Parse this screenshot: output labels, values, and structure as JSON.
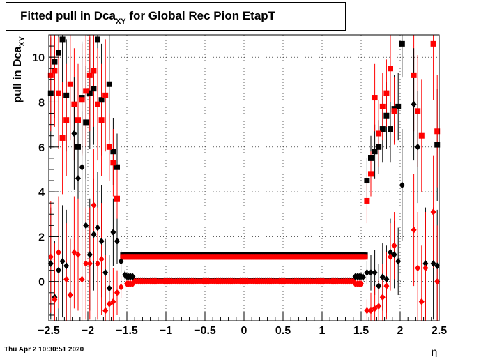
{
  "title": {
    "main": "Fitted pull in Dca",
    "sub": "XY",
    "rest": " for Global Rec Pion EtapT"
  },
  "ylabel": {
    "main": "pull in Dca",
    "sub": "XY"
  },
  "xlabel": "η",
  "footer": "Thu Apr  2 10:30:51 2020",
  "chart_data": {
    "type": "scatter",
    "xlim": [
      -2.5,
      2.5
    ],
    "ylim": [
      -1.75,
      11.0
    ],
    "xticks": [
      -2.5,
      -2,
      -1.5,
      -1,
      -0.5,
      0,
      0.5,
      1,
      1.5,
      2,
      2.5
    ],
    "xtick_labels": [
      "−2.5",
      "−2",
      "−1.5",
      "−1",
      "−0.5",
      "0",
      "0.5",
      "1",
      "1.5",
      "2",
      "2.5"
    ],
    "yticks": [
      0,
      2,
      4,
      6,
      8,
      10
    ],
    "ytick_labels": [
      "0",
      "2",
      "4",
      "6",
      "8",
      "10"
    ],
    "grid": true,
    "colors": {
      "black": "#000000",
      "red": "#ff0000"
    },
    "series": [
      {
        "marker": "square",
        "color": "#000000",
        "points": [
          [
            -2.475,
            8.4,
            2.5
          ],
          [
            -2.425,
            9.8,
            2.5
          ],
          [
            -2.375,
            10.2,
            2.5
          ],
          [
            -2.325,
            10.8,
            2.5
          ],
          [
            -2.275,
            8.3,
            2.5
          ],
          [
            -2.125,
            6.0,
            2.5
          ],
          [
            -2.075,
            8.2,
            2.5
          ],
          [
            -2.025,
            7.1,
            2.5
          ],
          [
            -1.975,
            8.4,
            2.5
          ],
          [
            -1.925,
            8.6,
            2.5
          ],
          [
            -1.875,
            10.8,
            2.5
          ],
          [
            -1.825,
            8.1,
            2.5
          ],
          [
            -1.725,
            8.8,
            2.5
          ],
          [
            -1.675,
            5.8,
            1.5
          ],
          [
            -1.625,
            5.1,
            1.5
          ],
          [
            1.575,
            4.5,
            1.0
          ],
          [
            1.625,
            5.5,
            1.0
          ],
          [
            1.675,
            5.8,
            1.2
          ],
          [
            1.725,
            6.0,
            1.2
          ],
          [
            1.775,
            6.8,
            1.5
          ],
          [
            1.825,
            7.4,
            1.5
          ],
          [
            1.875,
            6.8,
            1.5
          ],
          [
            1.925,
            7.7,
            1.5
          ],
          [
            1.975,
            7.8,
            1.5
          ],
          [
            2.025,
            10.6,
            1.5
          ],
          [
            2.475,
            6.1,
            2.5
          ]
        ]
      },
      {
        "marker": "square",
        "color": "#ff0000",
        "points": [
          [
            -2.475,
            9.2,
            2.5
          ],
          [
            -2.425,
            9.4,
            2.5
          ],
          [
            -2.375,
            8.4,
            2.5
          ],
          [
            -2.325,
            6.4,
            2.5
          ],
          [
            -2.275,
            7.2,
            2.5
          ],
          [
            -2.225,
            8.8,
            2.5
          ],
          [
            -2.175,
            7.9,
            2.5
          ],
          [
            -2.125,
            7.2,
            2.5
          ],
          [
            -2.075,
            8.1,
            2.5
          ],
          [
            -2.025,
            8.5,
            2.5
          ],
          [
            -1.975,
            9.2,
            2.5
          ],
          [
            -1.925,
            9.4,
            2.5
          ],
          [
            -1.875,
            7.9,
            2.5
          ],
          [
            -1.825,
            7.2,
            2.5
          ],
          [
            -1.775,
            8.3,
            2.5
          ],
          [
            -1.725,
            6.0,
            1.5
          ],
          [
            -1.675,
            5.3,
            1.5
          ],
          [
            -1.625,
            3.7,
            1.5
          ],
          [
            1.575,
            3.6,
            1.0
          ],
          [
            1.625,
            4.8,
            1.0
          ],
          [
            1.675,
            8.2,
            1.5
          ],
          [
            1.725,
            6.6,
            1.5
          ],
          [
            1.775,
            7.8,
            1.5
          ],
          [
            1.825,
            8.4,
            1.5
          ],
          [
            1.875,
            9.5,
            1.5
          ],
          [
            1.925,
            7.6,
            1.5
          ],
          [
            2.175,
            9.2,
            2.5
          ],
          [
            2.225,
            7.6,
            2.5
          ],
          [
            2.275,
            6.5,
            2.5
          ],
          [
            2.425,
            10.6,
            2.5
          ],
          [
            2.475,
            6.7,
            2.5
          ]
        ]
      },
      {
        "marker": "square",
        "color": "#000000",
        "band": true,
        "x_start": -1.55,
        "x_end": 1.55,
        "step": 0.025,
        "values": [
          1.17,
          1.17
        ]
      },
      {
        "marker": "square",
        "color": "#ff0000",
        "band": true,
        "x_start": -1.55,
        "x_end": 1.55,
        "step": 0.025,
        "values": [
          1.1,
          1.1
        ]
      },
      {
        "marker": "diamond",
        "color": "#000000",
        "points": [
          [
            -2.475,
            0.8,
            2.5
          ],
          [
            -2.425,
            -0.7,
            2.5
          ],
          [
            -2.375,
            0.5,
            2.5
          ],
          [
            -2.325,
            0.9,
            2.5
          ],
          [
            -2.275,
            0.7,
            2.5
          ],
          [
            -2.225,
            -0.6,
            2.5
          ],
          [
            -2.175,
            6.6,
            2.5
          ],
          [
            -2.125,
            4.6,
            2.5
          ],
          [
            -2.075,
            5.1,
            2.5
          ],
          [
            -2.025,
            2.5,
            2.5
          ],
          [
            -1.975,
            1.2,
            2.5
          ],
          [
            -1.925,
            2.1,
            2.5
          ],
          [
            -1.875,
            2.4,
            2.5
          ],
          [
            -1.825,
            1.8,
            2.5
          ],
          [
            -1.775,
            0.4,
            1.5
          ],
          [
            -1.725,
            -0.3,
            1.5
          ],
          [
            -1.675,
            2.2,
            1.5
          ],
          [
            -1.625,
            1.8,
            1.0
          ],
          [
            -1.575,
            0.9,
            0.5
          ],
          [
            -1.525,
            0.3,
            0.2
          ],
          [
            1.525,
            0.2,
            0.2
          ],
          [
            1.575,
            0.4,
            0.5
          ],
          [
            1.625,
            0.4,
            0.8
          ],
          [
            1.675,
            0.4,
            1.0
          ],
          [
            1.725,
            -0.2,
            1.0
          ],
          [
            1.775,
            0.2,
            1.5
          ],
          [
            1.825,
            0.1,
            1.5
          ],
          [
            1.875,
            1.3,
            1.5
          ],
          [
            1.925,
            1.2,
            1.5
          ],
          [
            1.975,
            0.9,
            1.5
          ],
          [
            2.025,
            4.3,
            2.5
          ],
          [
            2.175,
            7.9,
            2.5
          ],
          [
            2.225,
            6.0,
            2.5
          ],
          [
            2.325,
            0.8,
            2.5
          ],
          [
            2.425,
            0.8,
            2.5
          ],
          [
            2.475,
            0.7,
            2.5
          ]
        ]
      },
      {
        "marker": "diamond",
        "color": "#ff0000",
        "points": [
          [
            -2.475,
            1.1,
            2.5
          ],
          [
            -2.425,
            -0.8,
            2.5
          ],
          [
            -2.375,
            1.3,
            2.5
          ],
          [
            -2.275,
            0.1,
            2.5
          ],
          [
            -2.225,
            -0.6,
            2.5
          ],
          [
            -2.175,
            1.3,
            2.5
          ],
          [
            -2.125,
            1.2,
            2.5
          ],
          [
            -2.075,
            0.1,
            2.5
          ],
          [
            -2.025,
            0.8,
            2.5
          ],
          [
            -1.975,
            0.8,
            2.5
          ],
          [
            -1.925,
            3.4,
            2.5
          ],
          [
            -1.875,
            0.8,
            2.5
          ],
          [
            -1.825,
            1.0,
            2.5
          ],
          [
            -1.775,
            -1.3,
            2.5
          ],
          [
            -1.725,
            -1.0,
            1.5
          ],
          [
            -1.675,
            -0.9,
            1.5
          ],
          [
            -1.625,
            -0.5,
            1.0
          ],
          [
            -1.575,
            -0.25,
            0.5
          ],
          [
            1.575,
            -1.3,
            0.5
          ],
          [
            1.625,
            -1.3,
            0.8
          ],
          [
            1.675,
            -1.2,
            1.0
          ],
          [
            1.725,
            -1.1,
            1.2
          ],
          [
            1.775,
            -0.7,
            1.5
          ],
          [
            1.825,
            -0.2,
            1.5
          ],
          [
            1.875,
            1.1,
            1.5
          ],
          [
            1.925,
            1.6,
            1.5
          ],
          [
            2.175,
            2.3,
            2.5
          ],
          [
            2.225,
            0.6,
            2.5
          ],
          [
            2.275,
            -0.9,
            2.5
          ],
          [
            2.325,
            0.6,
            2.5
          ],
          [
            2.425,
            3.1,
            2.5
          ],
          [
            2.475,
            0.0,
            2.5
          ]
        ]
      },
      {
        "marker": "diamond",
        "color": "#000000",
        "band": true,
        "x_start": -1.5,
        "x_end": 1.5,
        "step": 0.025,
        "values": [
          0.22,
          0.04
        ]
      },
      {
        "marker": "diamond",
        "color": "#ff0000",
        "band": true,
        "x_start": -1.5,
        "x_end": 1.5,
        "step": 0.025,
        "values": [
          -0.1,
          0.01
        ]
      }
    ]
  }
}
